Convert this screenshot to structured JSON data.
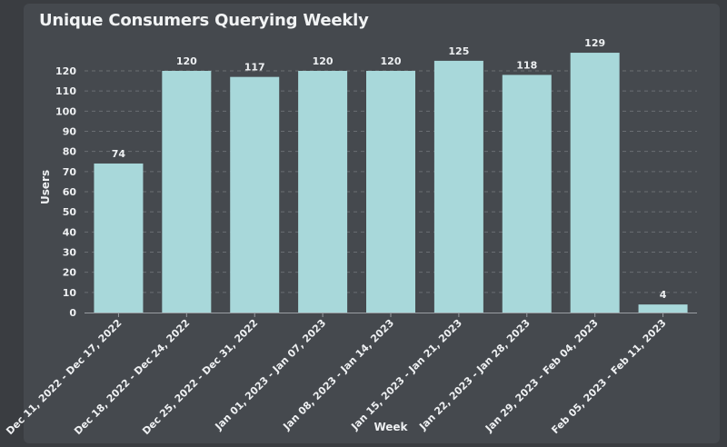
{
  "title": "Unique Consumers Querying Weekly",
  "colors": {
    "bar": "#a8d8da",
    "grid": "#6a6e73",
    "axis": "#9a9ea3"
  },
  "chart_data": {
    "type": "bar",
    "title": "Unique Consumers Querying Weekly",
    "xlabel": "Week",
    "ylabel": "Users",
    "categories": [
      "Dec 11, 2022 - Dec 17, 2022",
      "Dec 18, 2022 - Dec 24, 2022",
      "Dec 25, 2022 - Dec 31, 2022",
      "Jan 01, 2023 - Jan 07, 2023",
      "Jan 08, 2023 - Jan 14, 2023",
      "Jan 15, 2023 - Jan 21, 2023",
      "Jan 22, 2023 - Jan 28, 2023",
      "Jan 29, 2023 - Feb 04, 2023",
      "Feb 05, 2023 - Feb 11, 2023"
    ],
    "values": [
      74,
      120,
      117,
      120,
      120,
      125,
      118,
      129,
      4
    ],
    "ylim": [
      0,
      130
    ],
    "yticks": [
      0,
      10,
      20,
      30,
      40,
      50,
      60,
      70,
      80,
      90,
      100,
      110,
      120
    ],
    "grid": true,
    "legend": "none"
  }
}
